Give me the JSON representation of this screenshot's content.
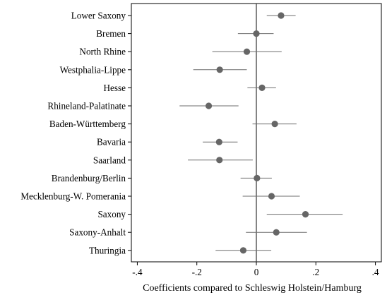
{
  "chart_data": {
    "type": "scatter",
    "subtype": "coefficient-plot",
    "orientation": "horizontal",
    "title": "",
    "xlabel": "Coefficients compared to Schleswig Holstein/Hamburg",
    "ylabel": "",
    "xlim": [
      -0.42,
      0.42
    ],
    "xticks": [
      -0.4,
      -0.2,
      0,
      0.2,
      0.4
    ],
    "xtick_labels": [
      "-.4",
      "-.2",
      "0",
      ".2",
      ".4"
    ],
    "reference_line_x": 0,
    "grid": false,
    "legend": "none",
    "colors": {
      "point": "#666666",
      "ci_line": "#6e6e6e",
      "reference_line": "#333333",
      "axis": "#000000"
    },
    "categories": [
      "Lower Saxony",
      "Bremen",
      "North Rhine",
      "Westphalia-Lippe",
      "Hesse",
      "Rhineland-Palatinate",
      "Baden-Württemberg",
      "Bavaria",
      "Saarland",
      "Brandenburg/Berlin",
      "Mecklenburg-W. Pomerania",
      "Saxony",
      "Saxony-Anhalt",
      "Thuringia"
    ],
    "estimates": [
      0.083,
      0.0,
      -0.032,
      -0.123,
      0.019,
      -0.16,
      0.062,
      -0.125,
      -0.124,
      0.002,
      0.051,
      0.165,
      0.067,
      -0.044
    ],
    "ci_low": [
      0.035,
      -0.062,
      -0.148,
      -0.212,
      -0.03,
      -0.258,
      -0.013,
      -0.18,
      -0.23,
      -0.053,
      -0.046,
      0.035,
      -0.035,
      -0.137
    ],
    "ci_high": [
      0.132,
      0.058,
      0.085,
      -0.032,
      0.066,
      -0.06,
      0.135,
      -0.063,
      -0.012,
      0.052,
      0.146,
      0.29,
      0.17,
      0.05
    ]
  }
}
